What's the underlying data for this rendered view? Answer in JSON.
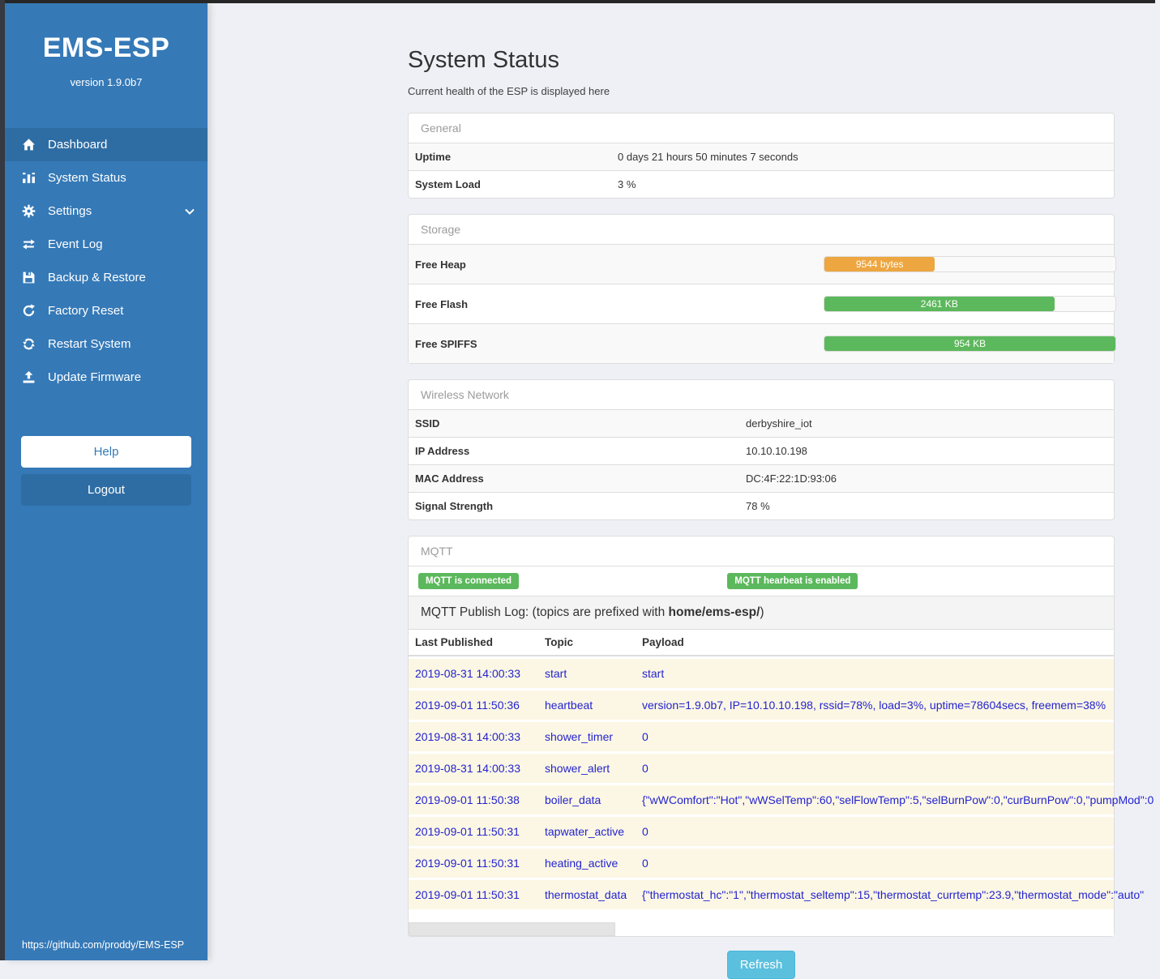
{
  "sidebar": {
    "title": "EMS-ESP",
    "version": "version 1.9.0b7",
    "items": [
      {
        "label": "Dashboard",
        "icon": "home-icon",
        "active": true
      },
      {
        "label": "System Status",
        "icon": "system-status-icon",
        "active": false
      },
      {
        "label": "Settings",
        "icon": "gear-icon",
        "active": false,
        "has_submenu": true
      },
      {
        "label": "Event Log",
        "icon": "exchange-icon",
        "active": false
      },
      {
        "label": "Backup & Restore",
        "icon": "save-icon",
        "active": false
      },
      {
        "label": "Factory Reset",
        "icon": "rotate-icon",
        "active": false
      },
      {
        "label": "Restart System",
        "icon": "refresh-icon",
        "active": false
      },
      {
        "label": "Update Firmware",
        "icon": "upload-icon",
        "active": false
      }
    ],
    "help_label": "Help",
    "logout_label": "Logout",
    "footer_link": "https://github.com/proddy/EMS-ESP",
    "colors": {
      "background": "#3579b7",
      "active_item": "#2e6da4"
    }
  },
  "main": {
    "title": "System Status",
    "subtitle": "Current health of the ESP is displayed here",
    "general": {
      "header": "General",
      "rows": [
        {
          "label": "Uptime",
          "value": "0 days 21 hours 50 minutes 7 seconds"
        },
        {
          "label": "System Load",
          "value": "3 %"
        }
      ]
    },
    "storage": {
      "header": "Storage",
      "rows": [
        {
          "label": "Free Heap",
          "bar_label": "9544 bytes",
          "percent": 38,
          "color": "#eda640"
        },
        {
          "label": "Free Flash",
          "bar_label": "2461 KB",
          "percent": 79,
          "color": "#5cb85c"
        },
        {
          "label": "Free SPIFFS",
          "bar_label": "954 KB",
          "percent": 100,
          "color": "#5cb85c"
        }
      ]
    },
    "wireless": {
      "header": "Wireless Network",
      "rows": [
        {
          "label": "SSID",
          "value": "derbyshire_iot"
        },
        {
          "label": "IP Address",
          "value": "10.10.10.198"
        },
        {
          "label": "MAC Address",
          "value": "DC:4F:22:1D:93:06"
        },
        {
          "label": "Signal Strength",
          "value": "78 %"
        }
      ]
    },
    "mqtt": {
      "header": "MQTT",
      "badges": [
        {
          "text": "MQTT is connected",
          "color": "#5cb85c"
        },
        {
          "text": "MQTT hearbeat is enabled",
          "color": "#5cb85c"
        }
      ],
      "publish_log": {
        "prefix_text": "MQTT Publish Log: (topics are prefixed with ",
        "bold_text": "home/ems-esp/",
        "suffix_text": ")"
      },
      "table": {
        "headers": [
          "Last Published",
          "Topic",
          "Payload"
        ],
        "rows": [
          {
            "time": "2019-08-31 14:00:33",
            "topic": "start",
            "payload": "start"
          },
          {
            "time": "2019-09-01 11:50:36",
            "topic": "heartbeat",
            "payload": "version=1.9.0b7, IP=10.10.10.198, rssid=78%, load=3%, uptime=78604secs, freemem=38%"
          },
          {
            "time": "2019-08-31 14:00:33",
            "topic": "shower_timer",
            "payload": "0"
          },
          {
            "time": "2019-08-31 14:00:33",
            "topic": "shower_alert",
            "payload": "0"
          },
          {
            "time": "2019-09-01 11:50:38",
            "topic": "boiler_data",
            "payload": "{\"wWComfort\":\"Hot\",\"wWSelTemp\":60,\"selFlowTemp\":5,\"selBurnPow\":0,\"curBurnPow\":0,\"pumpMod\":0"
          },
          {
            "time": "2019-09-01 11:50:31",
            "topic": "tapwater_active",
            "payload": "0"
          },
          {
            "time": "2019-09-01 11:50:31",
            "topic": "heating_active",
            "payload": "0"
          },
          {
            "time": "2019-09-01 11:50:31",
            "topic": "thermostat_data",
            "payload": "{\"thermostat_hc\":\"1\",\"thermostat_seltemp\":15,\"thermostat_currtemp\":23.9,\"thermostat_mode\":\"auto\""
          }
        ]
      }
    },
    "refresh_label": "Refresh"
  }
}
